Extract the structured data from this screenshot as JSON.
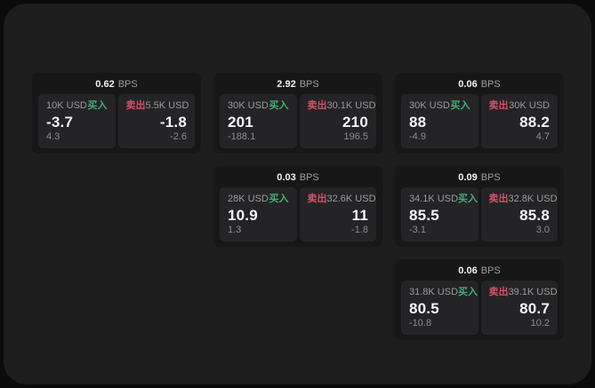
{
  "colors": {
    "outer_background": "#0b0b0c",
    "surface_background": "#1d1d1e",
    "card_background": "#171718",
    "panel_background": "#242426",
    "buy_accent": "#3fb076",
    "sell_accent": "#d15267",
    "primary_text": "#f2f2f2",
    "muted_text": "#9a9a9a"
  },
  "labels": {
    "bps": "BPS",
    "buy": "买入",
    "sell": "卖出"
  },
  "cards": [
    {
      "col": 1,
      "row": 1,
      "bps": "0.62",
      "buy": {
        "notional": "10K USD",
        "price": "-3.7",
        "change": "4.3"
      },
      "sell": {
        "notional": "5.5K USD",
        "price": "-1.8",
        "change": "-2.6"
      }
    },
    {
      "col": 2,
      "row": 1,
      "bps": "2.92",
      "buy": {
        "notional": "30K USD",
        "price": "201",
        "change": "-188.1"
      },
      "sell": {
        "notional": "30.1K USD",
        "price": "210",
        "change": "196.5"
      }
    },
    {
      "col": 3,
      "row": 1,
      "bps": "0.06",
      "buy": {
        "notional": "30K USD",
        "price": "88",
        "change": "-4.9"
      },
      "sell": {
        "notional": "30K USD",
        "price": "88.2",
        "change": "4.7"
      }
    },
    {
      "col": 2,
      "row": 2,
      "bps": "0.03",
      "buy": {
        "notional": "28K USD",
        "price": "10.9",
        "change": "1.3"
      },
      "sell": {
        "notional": "32.6K USD",
        "price": "11",
        "change": "-1.8"
      }
    },
    {
      "col": 3,
      "row": 2,
      "bps": "0.09",
      "buy": {
        "notional": "34.1K USD",
        "price": "85.5",
        "change": "-3.1"
      },
      "sell": {
        "notional": "32.8K USD",
        "price": "85.8",
        "change": "3.0"
      }
    },
    {
      "col": 3,
      "row": 3,
      "bps": "0.06",
      "buy": {
        "notional": "31.8K USD",
        "price": "80.5",
        "change": "-10.8"
      },
      "sell": {
        "notional": "39.1K USD",
        "price": "80.7",
        "change": "10.2"
      }
    }
  ]
}
